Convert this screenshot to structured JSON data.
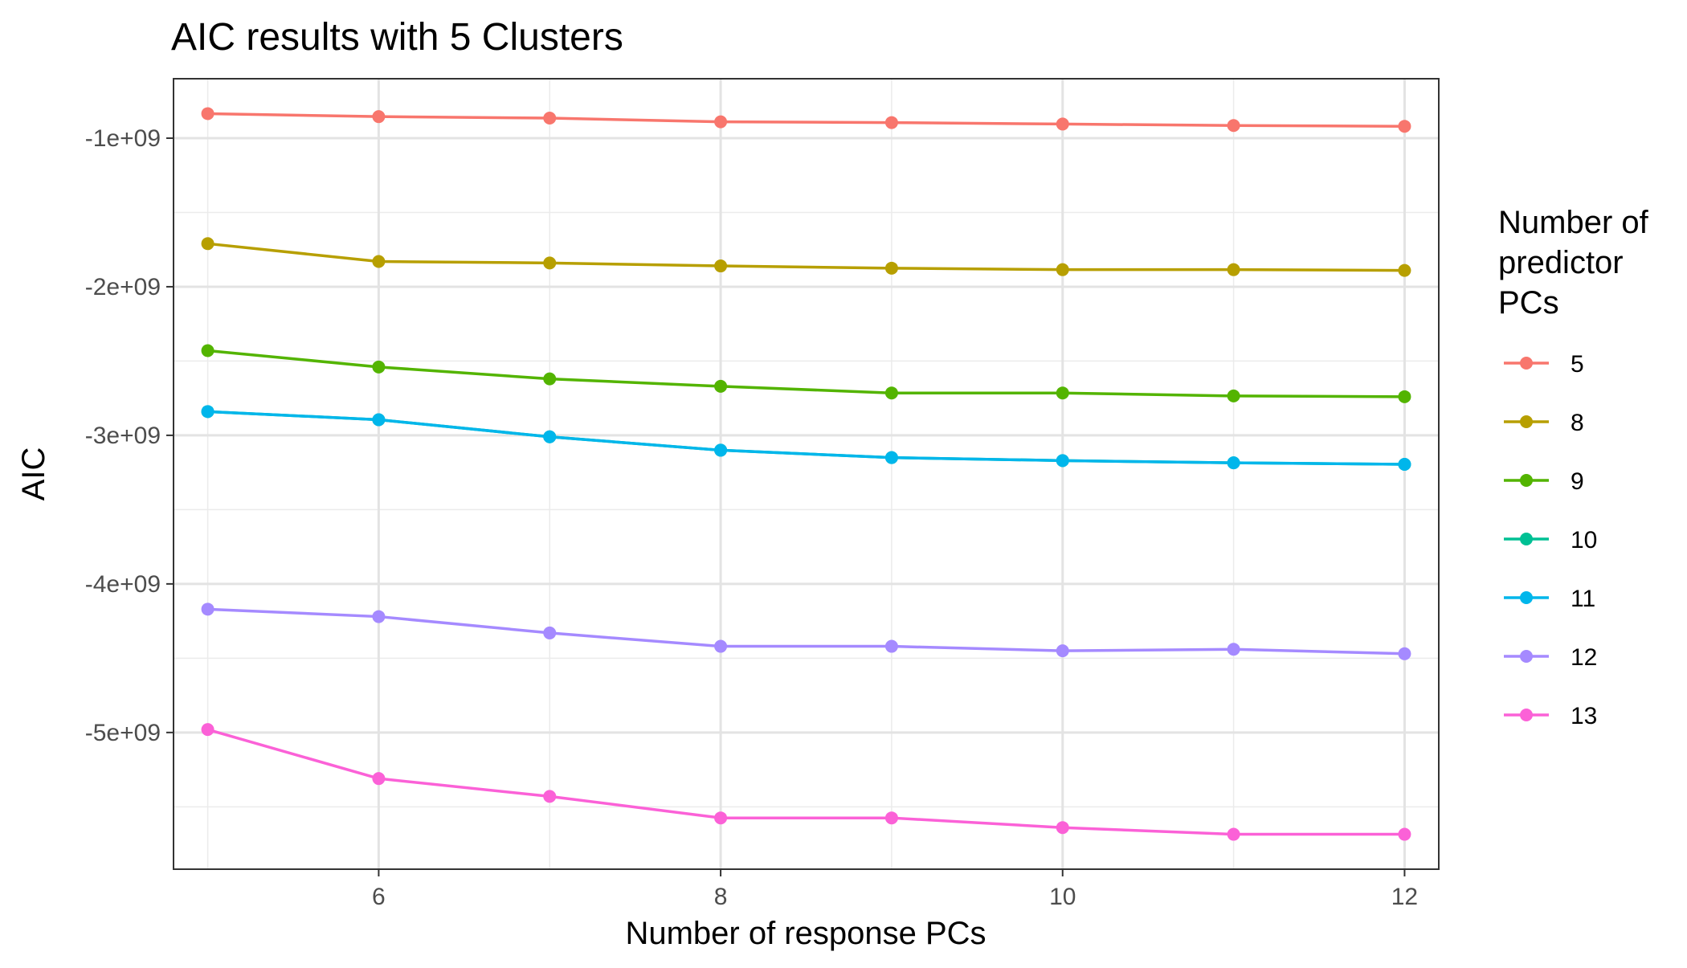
{
  "chart_data": {
    "type": "line",
    "title": "AIC results with 5 Clusters",
    "xlabel": "Number of response PCs",
    "ylabel": "AIC",
    "x": [
      5,
      6,
      7,
      8,
      9,
      10,
      11,
      12
    ],
    "xlim": [
      4.8,
      12.2
    ],
    "ylim": [
      -5920000000.0,
      -600000000.0
    ],
    "x_ticks": [
      6,
      8,
      10,
      12
    ],
    "y_ticks": [
      -5000000000.0,
      -4000000000.0,
      -3000000000.0,
      -2000000000.0,
      -1000000000.0
    ],
    "y_tick_labels": [
      "-5e+09",
      "-4e+09",
      "-3e+09",
      "-2e+09",
      "-1e+09"
    ],
    "x_minor_ticks": [
      5,
      7,
      9,
      11
    ],
    "y_minor_ticks": [
      -5500000000.0,
      -4500000000.0,
      -3500000000.0,
      -2500000000.0,
      -1500000000.0
    ],
    "grid": true,
    "legend": {
      "title_lines": [
        "Number of",
        "predictor",
        "PCs"
      ],
      "placement": "right"
    },
    "series": [
      {
        "name": "5",
        "color": "#F8766D",
        "values": [
          -835000000.0,
          -855000000.0,
          -865000000.0,
          -890000000.0,
          -895000000.0,
          -905000000.0,
          -915000000.0,
          -920000000.0
        ]
      },
      {
        "name": "8",
        "color": "#B79F00",
        "values": [
          -1710000000.0,
          -1830000000.0,
          -1840000000.0,
          -1860000000.0,
          -1875000000.0,
          -1885000000.0,
          -1885000000.0,
          -1890000000.0
        ]
      },
      {
        "name": "9",
        "color": "#53B400",
        "values": [
          -2430000000.0,
          -2540000000.0,
          -2620000000.0,
          -2670000000.0,
          -2715000000.0,
          -2715000000.0,
          -2735000000.0,
          -2740000000.0
        ]
      },
      {
        "name": "10",
        "color": "#00C094",
        "values": [
          -2840000000.0,
          -2895000000.0,
          -3010000000.0,
          -3100000000.0,
          -3150000000.0,
          -3170000000.0,
          -3185000000.0,
          -3195000000.0
        ]
      },
      {
        "name": "11",
        "color": "#00B6EB",
        "values": [
          -2840000000.0,
          -2895000000.0,
          -3010000000.0,
          -3100000000.0,
          -3150000000.0,
          -3170000000.0,
          -3185000000.0,
          -3195000000.0
        ]
      },
      {
        "name": "12",
        "color": "#A58AFF",
        "values": [
          -4170000000.0,
          -4220000000.0,
          -4330000000.0,
          -4420000000.0,
          -4420000000.0,
          -4450000000.0,
          -4440000000.0,
          -4470000000.0
        ]
      },
      {
        "name": "13",
        "color": "#FB61D7",
        "values": [
          -4980000000.0,
          -5310000000.0,
          -5430000000.0,
          -5575000000.0,
          -5575000000.0,
          -5640000000.0,
          -5685000000.0,
          -5685000000.0
        ]
      }
    ]
  }
}
